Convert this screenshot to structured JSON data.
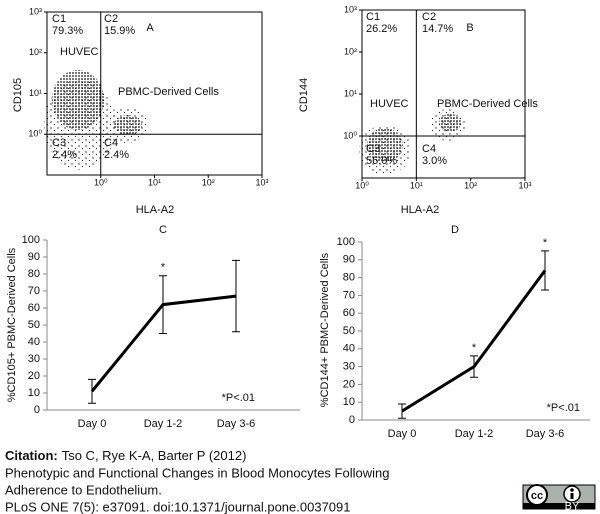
{
  "chart_data": [
    {
      "type": "scatter",
      "title": "A",
      "xlabel": "HLA-A2",
      "ylabel": "CD105",
      "log": true,
      "xlim": [
        0.1,
        1000
      ],
      "ylim": [
        0.1,
        1000
      ],
      "xticks": [
        {
          "value": 1,
          "label": "10⁰"
        },
        {
          "value": 10,
          "label": "10¹"
        },
        {
          "value": 100,
          "label": "10²"
        },
        {
          "value": 1000,
          "label": "10³"
        }
      ],
      "yticks": [
        {
          "value": 1,
          "label": "10⁰"
        },
        {
          "value": 10,
          "label": "10¹"
        },
        {
          "value": 100,
          "label": "10²"
        },
        {
          "value": 1000,
          "label": "10³"
        }
      ],
      "xgate": 1,
      "ygate": 1,
      "quadrant_names": [
        "C1",
        "C2",
        "C3",
        "C4"
      ],
      "values": [
        79.3,
        15.9,
        2.4,
        2.4
      ],
      "value_labels": [
        "79.3%",
        "15.9%",
        "2.4%",
        "2.4%"
      ],
      "population_labels": [
        "HUVEC",
        "PBMC-Derived Cells"
      ]
    },
    {
      "type": "scatter",
      "title": "B",
      "xlabel": "HLA-A2",
      "ylabel": "CD144",
      "log": true,
      "xlim": [
        1,
        1000
      ],
      "ylim": [
        0.1,
        1000
      ],
      "xticks": [
        {
          "value": 1,
          "label": "10⁰"
        },
        {
          "value": 10,
          "label": "10¹"
        },
        {
          "value": 100,
          "label": "10²"
        },
        {
          "value": 1000,
          "label": "10³"
        }
      ],
      "yticks": [
        {
          "value": 1,
          "label": "10⁰"
        },
        {
          "value": 10,
          "label": "10¹"
        },
        {
          "value": 100,
          "label": "10²"
        },
        {
          "value": 1000,
          "label": "10³"
        }
      ],
      "xgate": 10,
      "ygate": 1,
      "quadrant_names": [
        "C1",
        "C2",
        "C3",
        "C4"
      ],
      "values": [
        26.2,
        14.7,
        56.0,
        3.0
      ],
      "value_labels": [
        "26.2%",
        "14.7%",
        "56.0%",
        "3.0%"
      ],
      "population_labels": [
        "HUVEC",
        "PBMC-Derived Cells"
      ]
    },
    {
      "type": "line",
      "title": "C",
      "ylabel": "%CD105+ PBMC-Derived Cells",
      "categories": [
        "Day 0",
        "Day 1-2",
        "Day 3-6"
      ],
      "values": [
        11,
        62,
        67
      ],
      "errors": [
        7,
        17,
        21
      ],
      "significance": [
        null,
        "*",
        null
      ],
      "note": "*P<.01",
      "ylim": [
        0,
        100
      ],
      "yticks": [
        0,
        10,
        20,
        30,
        40,
        50,
        60,
        70,
        80,
        90,
        100
      ],
      "color": "#000000"
    },
    {
      "type": "line",
      "title": "D",
      "ylabel": "%CD144+ PBMC-Derived Cells",
      "categories": [
        "Day 0",
        "Day 1-2",
        "Day 3-6"
      ],
      "values": [
        5,
        30,
        84
      ],
      "errors": [
        4,
        6,
        11
      ],
      "significance": [
        null,
        "*",
        "*"
      ],
      "note": "*P<.01",
      "ylim": [
        0,
        100
      ],
      "yticks": [
        0,
        10,
        20,
        30,
        40,
        50,
        60,
        70,
        80,
        90,
        100
      ],
      "color": "#000000"
    }
  ],
  "citation": {
    "label": "Citation:",
    "lines": [
      "Tso C, Rye K-A, Barter P (2012)",
      "Phenotypic and Functional Changes in Blood Monocytes Following",
      "Adherence to Endothelium.",
      "PLoS ONE 7(5): e37091. doi:10.1371/journal.pone.0037091"
    ]
  },
  "license": {
    "cc": "cc",
    "by": "BY"
  }
}
